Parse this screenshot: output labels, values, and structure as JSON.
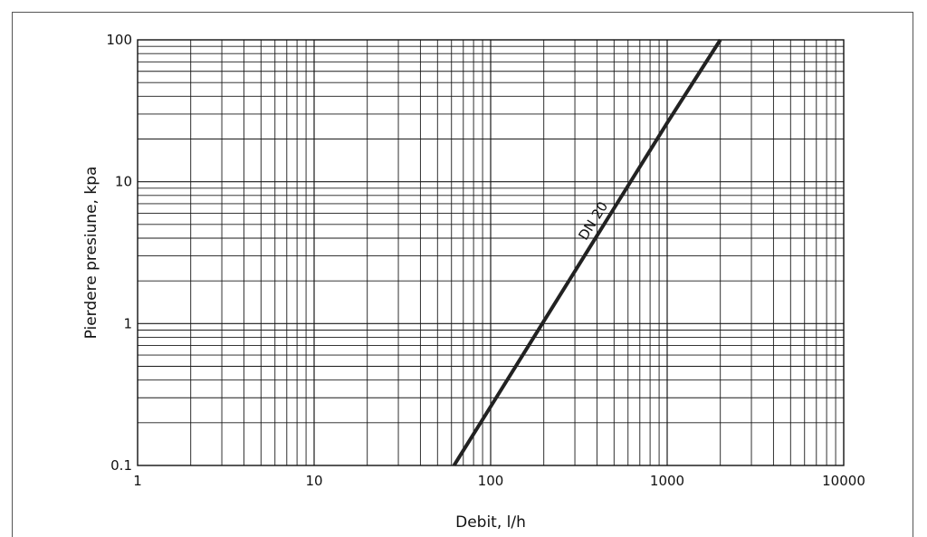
{
  "chart_data": {
    "type": "line",
    "xlabel": "Debit, l/h",
    "ylabel": "Pierdere presiune, kpa",
    "x_scale": "log",
    "y_scale": "log",
    "xlim": [
      1,
      10000
    ],
    "ylim": [
      0.1,
      100
    ],
    "x_ticks": [
      "1",
      "10",
      "100",
      "1000",
      "10000"
    ],
    "y_ticks": [
      "0.1",
      "1",
      "10",
      "100"
    ],
    "grid": true,
    "series": [
      {
        "name": "DN 20",
        "x": [
          62,
          100,
          200,
          500,
          1000,
          2000
        ],
        "y": [
          0.1,
          0.26,
          1.04,
          6.5,
          26,
          100
        ],
        "color": "#222222"
      }
    ]
  }
}
